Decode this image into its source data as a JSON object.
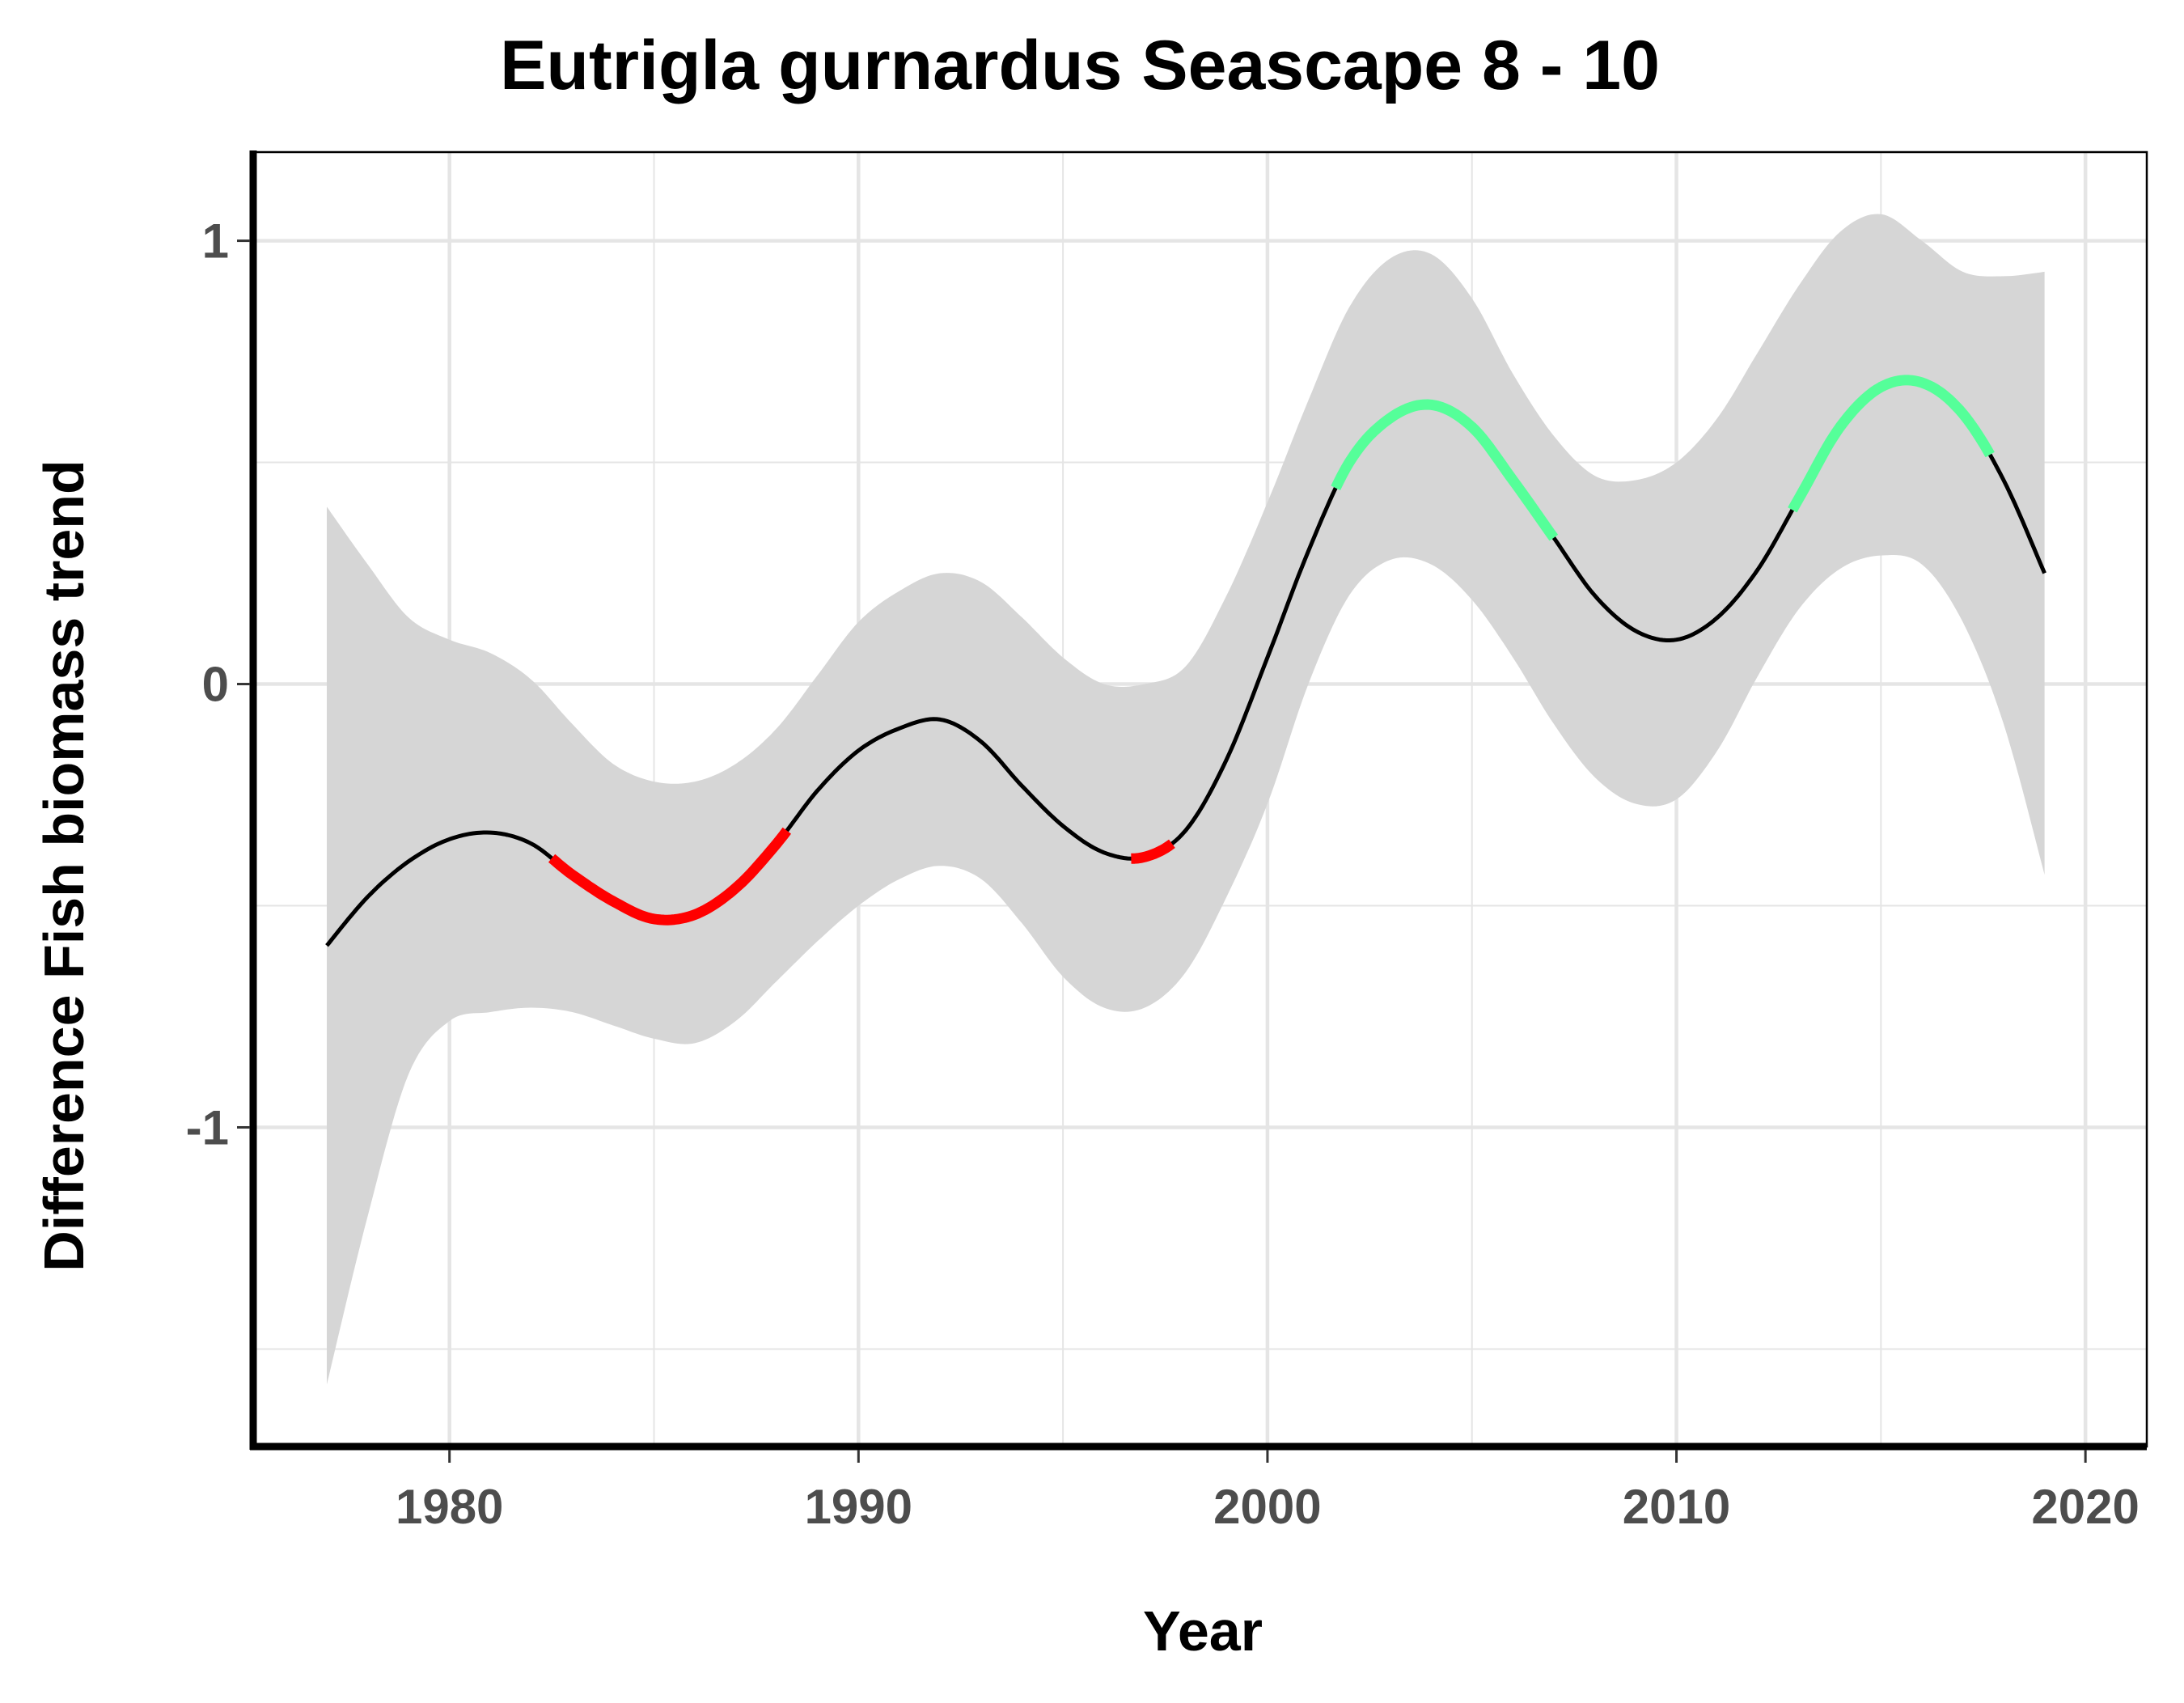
{
  "chart_data": {
    "type": "line",
    "title": "Eutrigla gurnardus Seascape 8 - 10",
    "xlabel": "Year",
    "ylabel": "Difference Fish biomass trend",
    "xlim": [
      1975.2,
      2021.5
    ],
    "ylim": [
      -1.72,
      1.2
    ],
    "x_ticks": [
      1980,
      1990,
      2000,
      2010,
      2020
    ],
    "x_tick_labels": [
      "1980",
      "1990",
      "2000",
      "2010",
      "2020"
    ],
    "y_ticks": [
      -1,
      0,
      1
    ],
    "y_tick_labels": [
      "-1",
      "0",
      "1"
    ],
    "grid": true,
    "legend": "none",
    "series": [
      {
        "x": [
          1977,
          1978,
          1979,
          1980,
          1981,
          1982,
          1983,
          1984,
          1985,
          1986,
          1987,
          1988,
          1989,
          1990,
          1991,
          1992,
          1993,
          1994,
          1995,
          1996,
          1997,
          1998,
          1999,
          2000,
          2001,
          2002,
          2003,
          2004,
          2005,
          2006,
          2007,
          2008,
          2009,
          2010,
          2011,
          2012,
          2013,
          2014,
          2015,
          2016,
          2017,
          2018,
          2019
        ],
        "y": [
          -0.59,
          -0.48,
          -0.4,
          -0.35,
          -0.335,
          -0.36,
          -0.43,
          -0.49,
          -0.53,
          -0.52,
          -0.46,
          -0.36,
          -0.24,
          -0.15,
          -0.1,
          -0.08,
          -0.13,
          -0.23,
          -0.32,
          -0.38,
          -0.39,
          -0.33,
          -0.17,
          0.06,
          0.3,
          0.5,
          0.6,
          0.63,
          0.58,
          0.46,
          0.33,
          0.2,
          0.12,
          0.1,
          0.15,
          0.26,
          0.42,
          0.58,
          0.67,
          0.68,
          0.61,
          0.46,
          0.25
        ],
        "lower": [
          -1.58,
          -1.2,
          -0.88,
          -0.76,
          -0.74,
          -0.73,
          -0.74,
          -0.77,
          -0.8,
          -0.81,
          -0.76,
          -0.67,
          -0.58,
          -0.5,
          -0.44,
          -0.41,
          -0.44,
          -0.54,
          -0.66,
          -0.73,
          -0.73,
          -0.65,
          -0.48,
          -0.27,
          0.0,
          0.2,
          0.28,
          0.27,
          0.19,
          0.06,
          -0.09,
          -0.21,
          -0.27,
          -0.26,
          -0.15,
          0.02,
          0.17,
          0.26,
          0.29,
          0.27,
          0.14,
          -0.09,
          -0.43
        ],
        "upper": [
          0.4,
          0.27,
          0.15,
          0.1,
          0.07,
          0.01,
          -0.09,
          -0.18,
          -0.22,
          -0.22,
          -0.18,
          -0.1,
          0.02,
          0.14,
          0.21,
          0.25,
          0.23,
          0.15,
          0.06,
          0.0,
          0.0,
          0.04,
          0.2,
          0.41,
          0.64,
          0.85,
          0.96,
          0.97,
          0.87,
          0.7,
          0.56,
          0.47,
          0.46,
          0.5,
          0.6,
          0.75,
          0.9,
          1.02,
          1.06,
          1.0,
          0.93,
          0.92,
          0.93
        ]
      }
    ],
    "highlight_segments": [
      {
        "color": "#ff0000",
        "x_start": 1982.5,
        "x_end": 1988.3
      },
      {
        "color": "#ff0000",
        "x_start": 1996.6,
        "x_end": 1997.7
      },
      {
        "color": "#55ff99",
        "x_start": 2001.6,
        "x_end": 2007.0
      },
      {
        "color": "#55ff99",
        "x_start": 2012.8,
        "x_end": 2017.7
      }
    ],
    "colors": {
      "line": "#000000",
      "ribbon": "#d6d6d6",
      "grid": "#e5e5e5",
      "frame": "#000000",
      "decrease": "#ff0000",
      "increase": "#55ff99"
    }
  }
}
